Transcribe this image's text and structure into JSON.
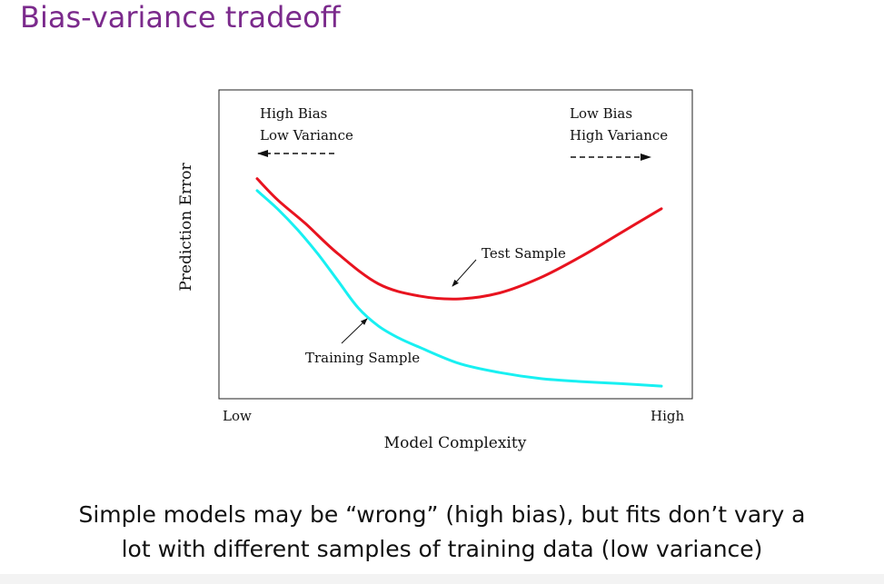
{
  "slide": {
    "title": "Bias-variance tradeoff",
    "caption_line1": "Simple models may be “wrong” (high bias), but fits don’t vary a",
    "caption_line2": "lot with different samples of training data (low variance)"
  },
  "colors": {
    "title": "#7b2a8c",
    "test_curve": "#e8131f",
    "training_curve": "#18f0f2",
    "text": "#111111"
  },
  "chart_data": {
    "type": "line",
    "xlabel": "Model Complexity",
    "ylabel": "Prediction Error",
    "x_tick_labels": [
      "Low",
      "High"
    ],
    "xlim": [
      0,
      1
    ],
    "ylim": [
      0,
      1
    ],
    "grid": false,
    "legend": "none",
    "annotations": {
      "left_line1": "High Bias",
      "left_line2": "Low Variance",
      "left_arrow_direction": "left",
      "right_line1": "Low Bias",
      "right_line2": "High Variance",
      "right_arrow_direction": "right",
      "test_label": "Test Sample",
      "training_label": "Training Sample"
    },
    "series": [
      {
        "name": "Test Sample",
        "color": "#e8131f",
        "x": [
          0.0,
          0.05,
          0.12,
          0.2,
          0.3,
          0.4,
          0.5,
          0.6,
          0.7,
          0.8,
          0.9,
          1.0
        ],
        "y": [
          0.72,
          0.65,
          0.57,
          0.47,
          0.37,
          0.33,
          0.32,
          0.34,
          0.39,
          0.46,
          0.54,
          0.62
        ]
      },
      {
        "name": "Training Sample",
        "color": "#18f0f2",
        "x": [
          0.0,
          0.05,
          0.1,
          0.15,
          0.2,
          0.25,
          0.3,
          0.35,
          0.4,
          0.5,
          0.6,
          0.7,
          0.8,
          0.9,
          1.0
        ],
        "y": [
          0.68,
          0.62,
          0.55,
          0.47,
          0.38,
          0.29,
          0.23,
          0.19,
          0.16,
          0.105,
          0.075,
          0.055,
          0.045,
          0.038,
          0.03
        ]
      }
    ]
  }
}
